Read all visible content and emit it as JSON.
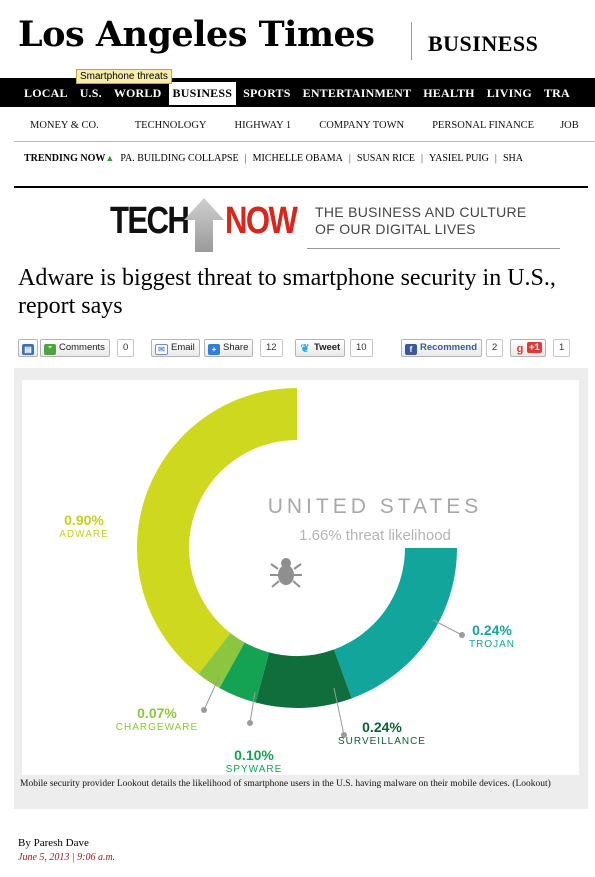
{
  "masthead": {
    "logo": "Los Angeles Times",
    "section": "BUSINESS",
    "tooltip": "Smartphone threats"
  },
  "main_nav": [
    "LOCAL",
    "U.S.",
    "WORLD",
    "BUSINESS",
    "SPORTS",
    "ENTERTAINMENT",
    "HEALTH",
    "LIVING",
    "TRA"
  ],
  "main_nav_active": "BUSINESS",
  "sub_nav": [
    "MONEY & CO.",
    "TECHNOLOGY",
    "HIGHWAY 1",
    "COMPANY TOWN",
    "PERSONAL FINANCE",
    "JOB"
  ],
  "trending": {
    "label": "TRENDING NOW",
    "items": [
      "PA. BUILDING COLLAPSE",
      "MICHELLE OBAMA",
      "SUSAN RICE",
      "YASIEL PUIG",
      "SHA"
    ]
  },
  "banner": {
    "tech": "TECH",
    "now": "NOW",
    "tagline_1": "THE BUSINESS AND CULTURE",
    "tagline_2": "OF OUR DIGITAL LIVES"
  },
  "headline": "Adware is biggest threat to smartphone security in U.S., report says",
  "share": {
    "comments_label": "Comments",
    "comments_count": "0",
    "email_label": "Email",
    "share_label": "Share",
    "share_count": "12",
    "tweet_label": "Tweet",
    "tweet_count": "10",
    "recommend_label": "Recommend",
    "recommend_count": "2",
    "plusone_label": "+1",
    "plusone_count": "1"
  },
  "chart_data": {
    "type": "pie",
    "title": "UNITED STATES",
    "subtitle": "1.66% threat likelihood",
    "slices": [
      {
        "name": "ADWARE",
        "value": 0.9,
        "label": "0.90%",
        "color": "#cdd81f"
      },
      {
        "name": "TROJAN",
        "value": 0.24,
        "label": "0.24%",
        "color": "#12a59b"
      },
      {
        "name": "SURVEILLANCE",
        "value": 0.24,
        "label": "0.24%",
        "color": "#0f6e3b"
      },
      {
        "name": "SPYWARE",
        "value": 0.1,
        "label": "0.10%",
        "color": "#14a352"
      },
      {
        "name": "CHARGEWARE",
        "value": 0.07,
        "label": "0.07%",
        "color": "#8cc53f"
      }
    ]
  },
  "caption": "Mobile security provider Lookout details the likelihood of smartphone users in the U.S. having malware on their mobile devices. (Lookout)",
  "byline": "By Paresh Dave",
  "dateline": "June 5, 2013 | 9:06 a.m."
}
